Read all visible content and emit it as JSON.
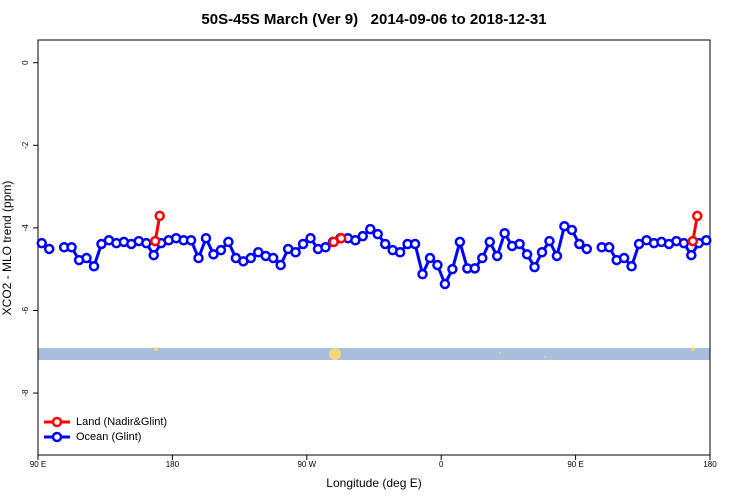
{
  "chart_data": {
    "type": "line",
    "title": "50S-45S March (Ver 9)   2014-09-06 to 2018-12-31",
    "x_label": "Longitude (deg E)",
    "y_label": "XCO2 - MLO trend (ppm)",
    "xlim": [
      90,
      540
    ],
    "xticks": [
      {
        "value": 90,
        "label": "90 E"
      },
      {
        "value": 180,
        "label": "180"
      },
      {
        "value": 270,
        "label": "90 W"
      },
      {
        "value": 360,
        "label": "0"
      },
      {
        "value": 450,
        "label": "90 E"
      },
      {
        "value": 540,
        "label": "180"
      }
    ],
    "ylim": [
      -9.5,
      0.55
    ],
    "yticks": [
      0,
      -2,
      -4,
      -6,
      -8
    ],
    "legend": "bottom-left",
    "series": [
      {
        "name": "Land (Nadir&Glint)",
        "color": "#ff0000",
        "x": [
          168.5,
          171.5,
          null,
          288,
          293,
          null,
          528.5,
          531.5
        ],
        "values": [
          -4.32,
          -3.71,
          null,
          -4.34,
          -4.25,
          null,
          -4.32,
          -3.71
        ]
      },
      {
        "name": "Ocean (Glint)",
        "color": "#0000ff",
        "x": [
          92.5,
          97.5,
          102.5,
          107.5,
          112.5,
          117.5,
          122.5,
          127.5,
          132.5,
          137.5,
          142.5,
          147.5,
          152.5,
          157.5,
          162.5,
          167.5,
          172.5,
          177.5,
          182.5,
          187.5,
          192.5,
          197.5,
          202.5,
          207.5,
          212.5,
          217.5,
          222.5,
          227.5,
          232.5,
          237.5,
          242.5,
          247.5,
          252.5,
          257.5,
          262.5,
          267.5,
          272.5,
          277.5,
          282.5,
          287.5,
          292.5,
          297.5,
          302.5,
          307.5,
          312.5,
          317.5,
          322.5,
          327.5,
          332.5,
          337.5,
          342.5,
          347.5,
          352.5,
          357.5,
          362.5,
          367.5,
          372.5,
          377.5,
          382.5,
          387.5,
          392.5,
          397.5,
          402.5,
          407.5,
          412.5,
          417.5,
          422.5,
          427.5,
          432.5,
          437.5,
          442.5,
          447.5,
          452.5,
          457.5,
          462.5,
          467.5,
          472.5,
          477.5,
          482.5,
          487.5,
          492.5,
          497.5,
          502.5,
          507.5,
          512.5,
          517.5,
          522.5,
          527.5,
          532.5,
          537.5
        ],
        "values": [
          -4.37,
          -4.51,
          null,
          -4.47,
          -4.47,
          -4.78,
          -4.73,
          -4.93,
          -4.39,
          -4.3,
          -4.37,
          -4.34,
          -4.39,
          -4.32,
          -4.37,
          -4.66,
          -4.37,
          -4.3,
          -4.25,
          -4.3,
          -4.3,
          -4.73,
          -4.25,
          -4.64,
          -4.54,
          -4.34,
          -4.73,
          -4.81,
          -4.73,
          -4.59,
          -4.68,
          -4.73,
          -4.9,
          -4.51,
          -4.59,
          -4.39,
          -4.25,
          -4.51,
          -4.47,
          -4.34,
          -4.25,
          -4.25,
          -4.3,
          -4.2,
          -4.03,
          -4.15,
          -4.39,
          -4.54,
          -4.59,
          -4.39,
          -4.39,
          -5.12,
          -4.73,
          -4.9,
          -5.36,
          -5.0,
          -4.34,
          -4.98,
          -4.98,
          -4.73,
          -4.34,
          -4.68,
          -4.13,
          -4.44,
          -4.39,
          -4.64,
          -4.95,
          -4.59,
          -4.32,
          -4.68,
          -3.96,
          -4.05,
          -4.39,
          -4.51,
          null,
          -4.47,
          -4.47,
          -4.78,
          -4.73,
          -4.93,
          -4.39,
          -4.3,
          -4.37,
          -4.34,
          -4.39,
          -4.32,
          -4.37,
          -4.66,
          -4.37,
          -4.3
        ]
      }
    ]
  }
}
